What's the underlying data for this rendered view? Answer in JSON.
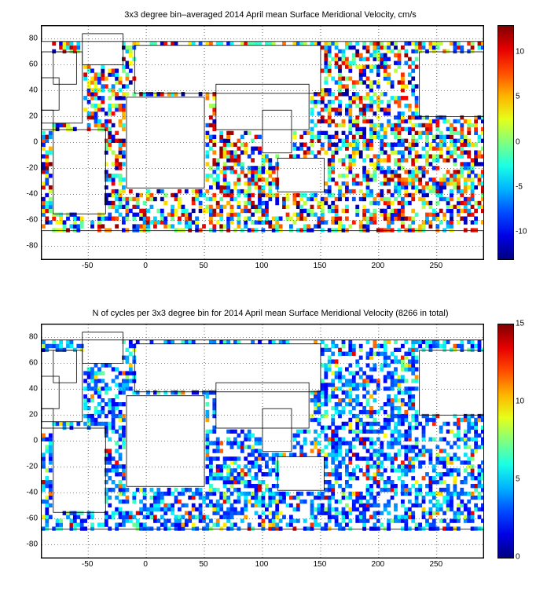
{
  "chart_data": [
    {
      "type": "heatmap",
      "title": "3x3 degree bin–averaged 2014 April mean Surface Meridional Velocity, cm/s",
      "xlim": [
        -90,
        290
      ],
      "ylim": [
        -90,
        90
      ],
      "xticks": [
        -50,
        0,
        50,
        100,
        150,
        200,
        250
      ],
      "yticks": [
        80,
        60,
        40,
        20,
        0,
        -20,
        -40,
        -60,
        -80
      ],
      "grid": true,
      "colorbar": {
        "colormap": "jet",
        "range": [
          -13,
          13
        ],
        "ticks": [
          10,
          5,
          0,
          -5,
          -10
        ]
      },
      "bin_size_deg": 3,
      "value_style": "diverging"
    },
    {
      "type": "heatmap",
      "title": "N of cycles per 3x3 degree bin for 2014 April mean Surface Meridional Velocity (8266 in total)",
      "xlim": [
        -90,
        290
      ],
      "ylim": [
        -90,
        90
      ],
      "xticks": [
        -50,
        0,
        50,
        100,
        150,
        200,
        250
      ],
      "yticks": [
        80,
        60,
        40,
        20,
        0,
        -20,
        -40,
        -60,
        -80
      ],
      "grid": true,
      "colorbar": {
        "colormap": "jet",
        "range": [
          0,
          15
        ],
        "ticks": [
          15,
          10,
          5,
          0
        ]
      },
      "bin_size_deg": 3,
      "value_style": "counts"
    }
  ]
}
